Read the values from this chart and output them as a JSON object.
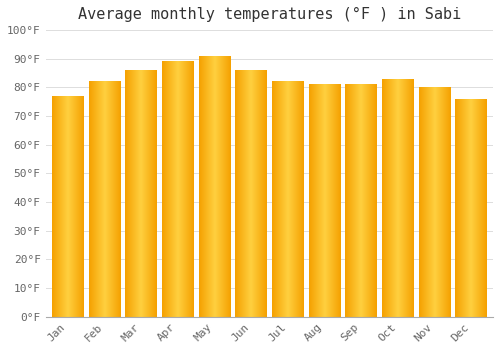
{
  "title": "Average monthly temperatures (°F ) in Sabi",
  "months": [
    "Jan",
    "Feb",
    "Mar",
    "Apr",
    "May",
    "Jun",
    "Jul",
    "Aug",
    "Sep",
    "Oct",
    "Nov",
    "Dec"
  ],
  "values": [
    77,
    82,
    86,
    89,
    91,
    86,
    82,
    81,
    81,
    83,
    80,
    76
  ],
  "bar_color_center": "#FFD040",
  "bar_color_edge": "#F5A000",
  "ylim": [
    0,
    100
  ],
  "yticks": [
    0,
    10,
    20,
    30,
    40,
    50,
    60,
    70,
    80,
    90,
    100
  ],
  "ytick_labels": [
    "0°F",
    "10°F",
    "20°F",
    "30°F",
    "40°F",
    "50°F",
    "60°F",
    "70°F",
    "80°F",
    "90°F",
    "100°F"
  ],
  "background_color": "#FFFFFF",
  "grid_color": "#DDDDDD",
  "title_fontsize": 11,
  "tick_fontsize": 8,
  "font_family": "monospace",
  "tick_color": "#666666",
  "bar_width": 0.85,
  "gradient_steps": 100
}
